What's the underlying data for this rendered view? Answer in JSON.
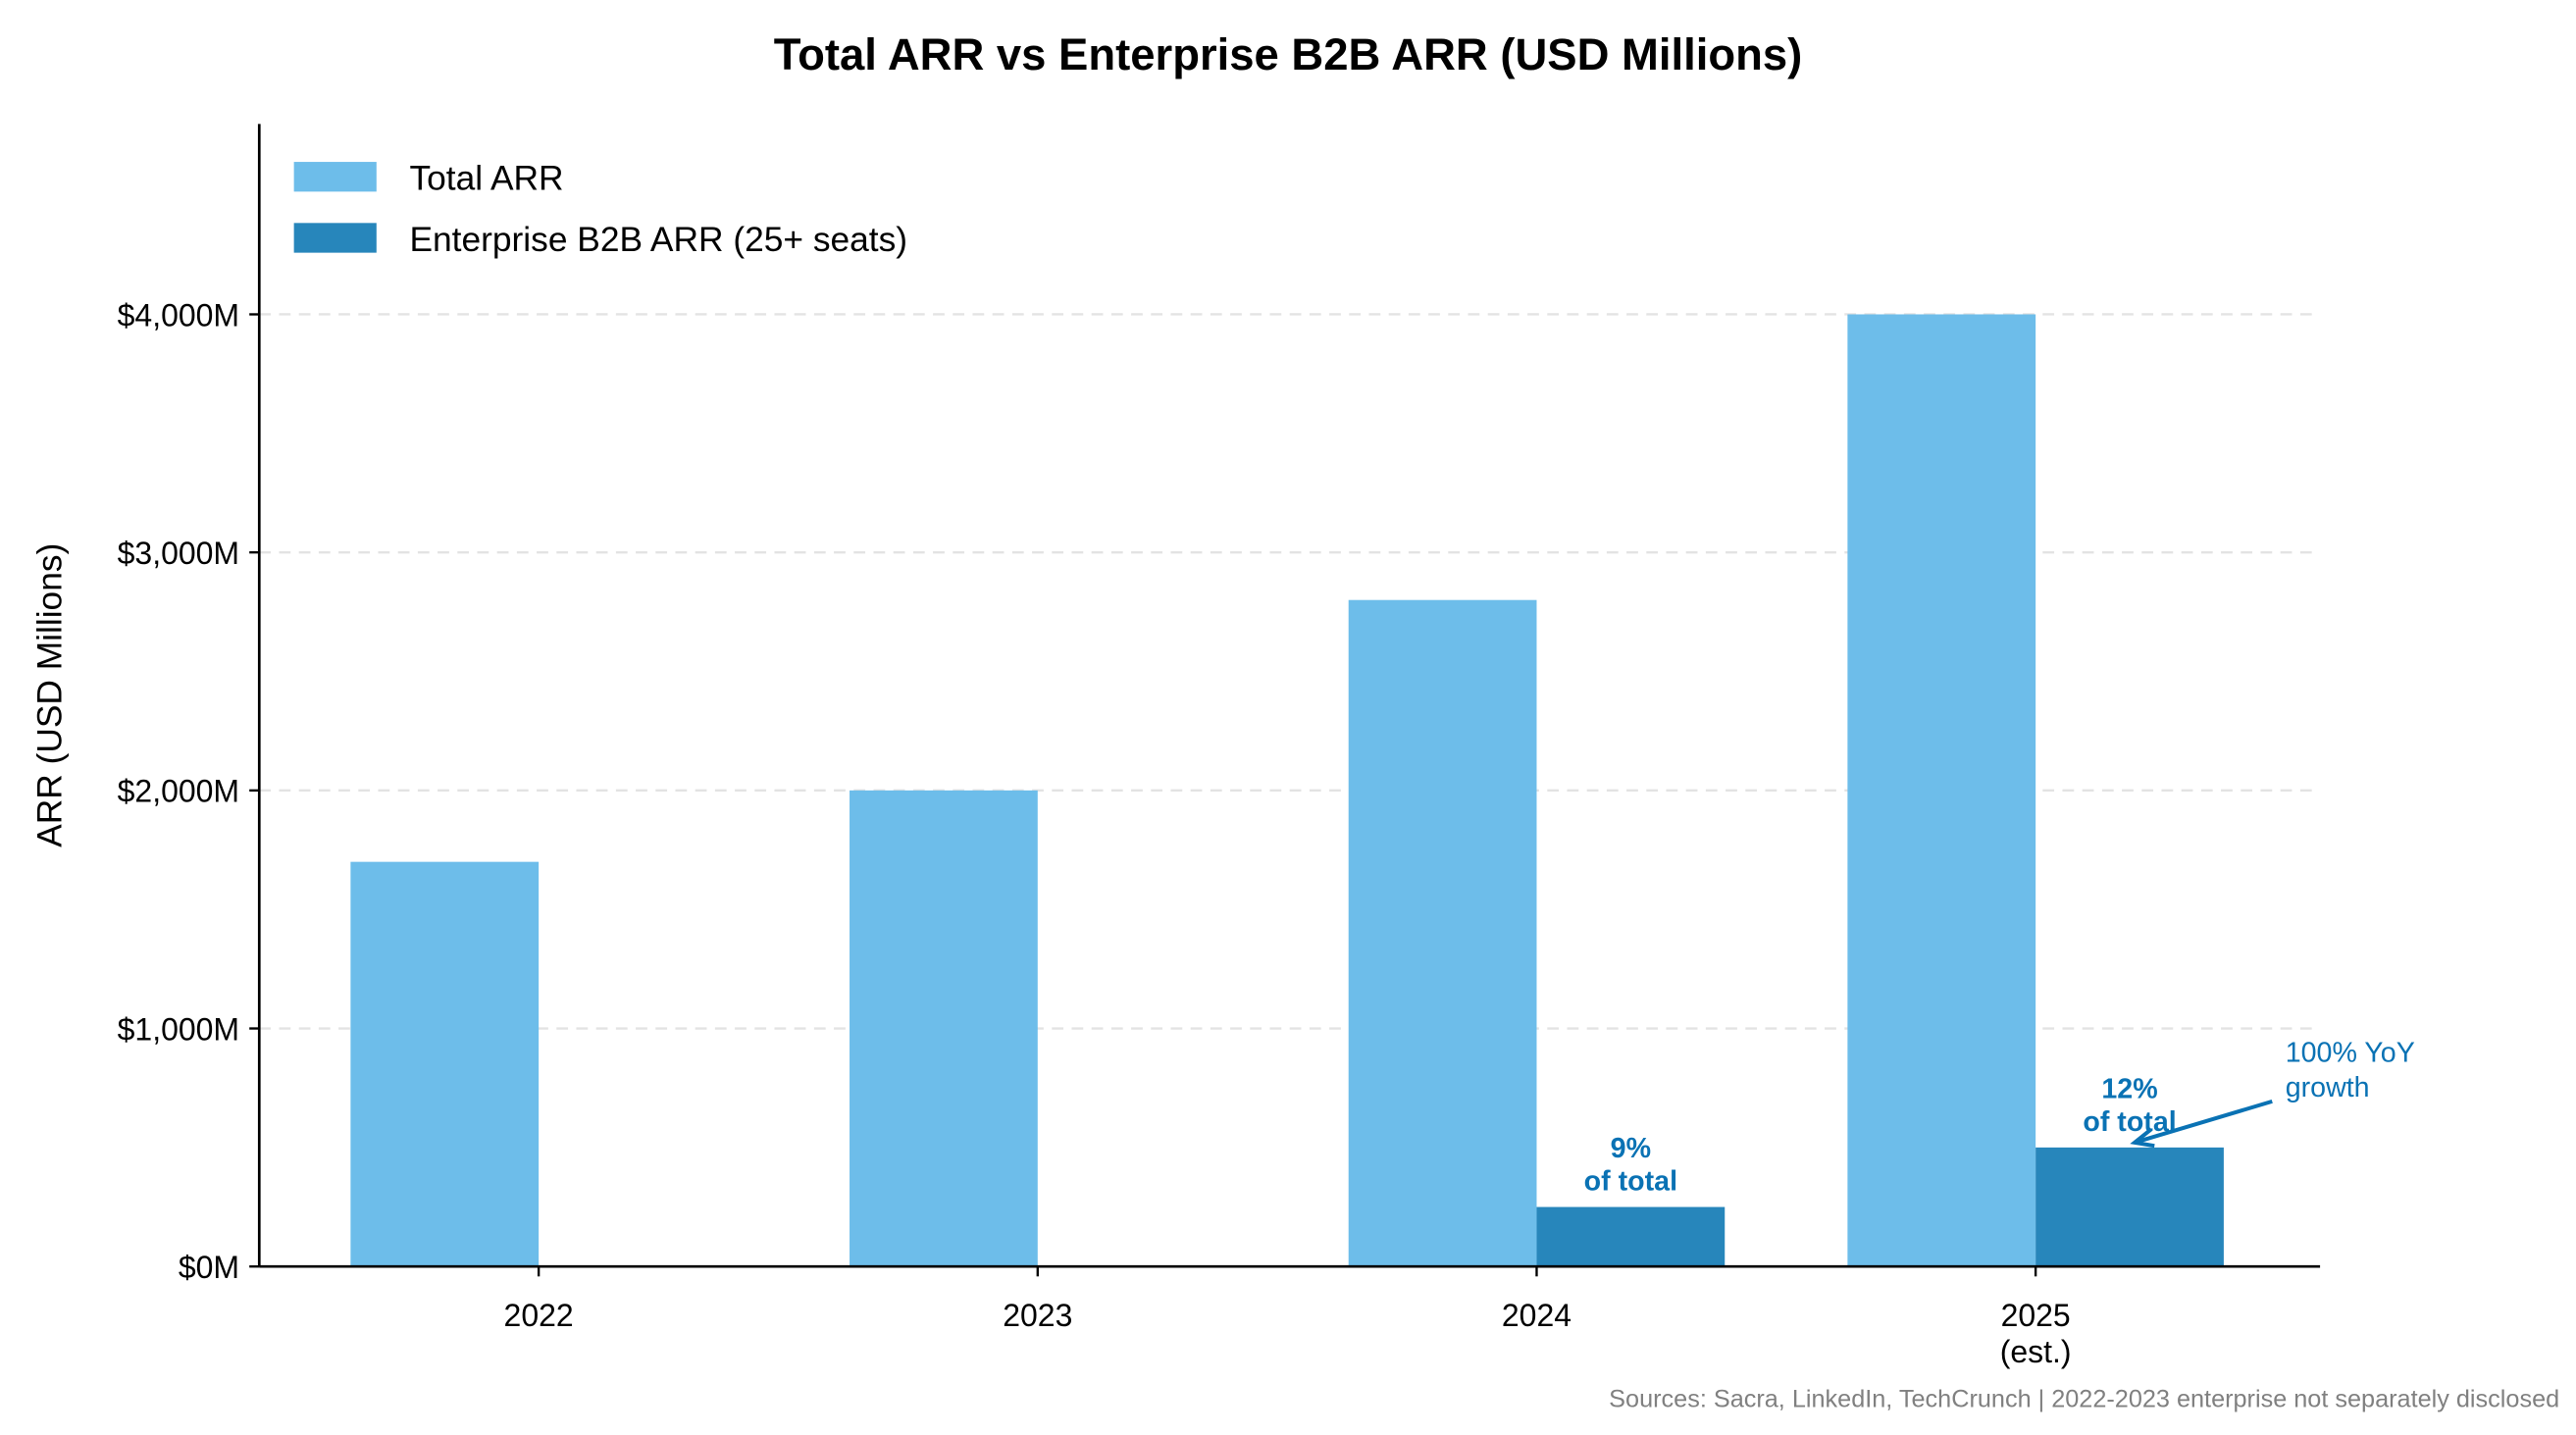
{
  "chart_data": {
    "type": "bar",
    "title": "Total ARR vs Enterprise B2B ARR (USD Millions)",
    "xlabel": "",
    "ylabel": "ARR (USD Millions)",
    "categories": [
      "2022",
      "2023",
      "2024",
      "2025\n(est.)"
    ],
    "series": [
      {
        "name": "Total ARR",
        "values": [
          1700,
          2000,
          2800,
          4000
        ],
        "color": "#6dbdea"
      },
      {
        "name": "Enterprise B2B ARR (25+ seats)",
        "values": [
          null,
          null,
          250,
          500
        ],
        "color": "#2786bb"
      }
    ],
    "ylim": [
      0,
      4800
    ],
    "yticks": [
      0,
      1000,
      2000,
      3000,
      4000
    ],
    "ytick_labels": [
      "$0M",
      "$1,000M",
      "$2,000M",
      "$3,000M",
      "$4,000M"
    ],
    "grid": "horizontal dashed",
    "legend": "top-left",
    "annotations": [
      {
        "category_index": 2,
        "text": [
          "9%",
          "of total"
        ],
        "color": "#0a72b4"
      },
      {
        "category_index": 3,
        "text": [
          "12%",
          "of total"
        ],
        "color": "#0a72b4"
      },
      {
        "category_index": 3,
        "text": [
          "100% YoY",
          "growth"
        ],
        "arrow": true,
        "color": "#0a72b4"
      }
    ],
    "footnote": "Sources: Sacra, LinkedIn, TechCrunch | 2022-2023 enterprise not separately disclosed"
  }
}
